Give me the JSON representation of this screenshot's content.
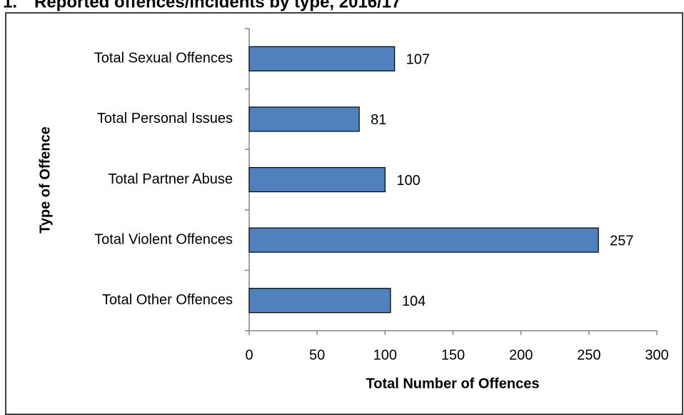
{
  "chart_data": {
    "type": "bar",
    "orientation": "horizontal",
    "figure_number": "1.",
    "title": "Reported offences/incidents by type, 2016/17",
    "x_label": "Total Number of Offences",
    "y_label": "Type of Offence",
    "categories": [
      "Total Sexual Offences",
      "Total Personal Issues",
      "Total Partner Abuse",
      "Total Violent Offences",
      "Total Other Offences"
    ],
    "values": [
      107,
      81,
      100,
      257,
      104
    ],
    "color": "#4f81bd",
    "xlim": [
      0,
      300
    ],
    "xticks": [
      0,
      50,
      100,
      150,
      200,
      250,
      300
    ],
    "grid": false
  }
}
